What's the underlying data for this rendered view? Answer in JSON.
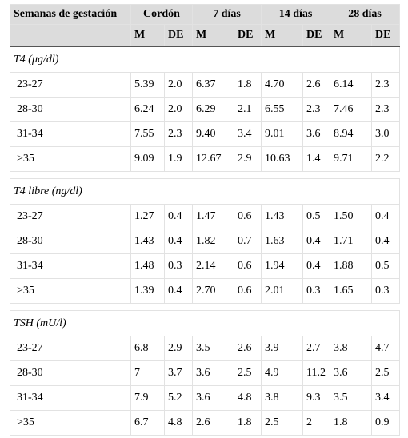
{
  "header": {
    "first": "Semanas de gestación",
    "groups": [
      "Cordón",
      "7 días",
      "14 días",
      "28 días"
    ],
    "sub": [
      "M",
      "DE",
      "M",
      "DE",
      "M",
      "DE",
      "M",
      "DE"
    ]
  },
  "sections": [
    {
      "title": "T4 (μg/dl)",
      "rows": [
        [
          "23-27",
          "5.39",
          "2.0",
          "6.37",
          "1.8",
          "4.70",
          "2.6",
          "6.14",
          "2.3"
        ],
        [
          "28-30",
          "6.24",
          "2.0",
          "6.29",
          "2.1",
          "6.55",
          "2.3",
          "7.46",
          "2.3"
        ],
        [
          "31-34",
          "7.55",
          "2.3",
          "9.40",
          "3.4",
          "9.01",
          "3.6",
          "8.94",
          "3.0"
        ],
        [
          ">35",
          "9.09",
          "1.9",
          "12.67",
          "2.9",
          "10.63",
          "1.4",
          "9.71",
          "2.2"
        ]
      ]
    },
    {
      "title": "T4 libre (ng/dl)",
      "rows": [
        [
          "23-27",
          "1.27",
          "0.4",
          "1.47",
          "0.6",
          "1.43",
          "0.5",
          "1.50",
          "0.4"
        ],
        [
          "28-30",
          "1.43",
          "0.4",
          "1.82",
          "0.7",
          "1.63",
          "0.4",
          "1.71",
          "0.4"
        ],
        [
          "31-34",
          "1.48",
          "0.3",
          "2.14",
          "0.6",
          "1.94",
          "0.4",
          "1.88",
          "0.5"
        ],
        [
          ">35",
          "1.39",
          "0.4",
          "2.70",
          "0.6",
          "2.01",
          "0.3",
          "1.65",
          "0.3"
        ]
      ]
    },
    {
      "title": "TSH (mU/l)",
      "rows": [
        [
          "23-27",
          "6.8",
          "2.9",
          "3.5",
          "2.6",
          "3.9",
          "2.7",
          "3.8",
          "4.7"
        ],
        [
          "28-30",
          "7",
          "3.7",
          "3.6",
          "2.5",
          "4.9",
          "11.2",
          "3.6",
          "2.5"
        ],
        [
          "31-34",
          "7.9",
          "5.2",
          "3.6",
          "4.8",
          "3.8",
          "9.3",
          "3.5",
          "3.4"
        ],
        [
          ">35",
          "6.7",
          "4.8",
          "2.6",
          "1.8",
          "2.5",
          "2",
          "1.8",
          "0.9"
        ]
      ]
    }
  ]
}
